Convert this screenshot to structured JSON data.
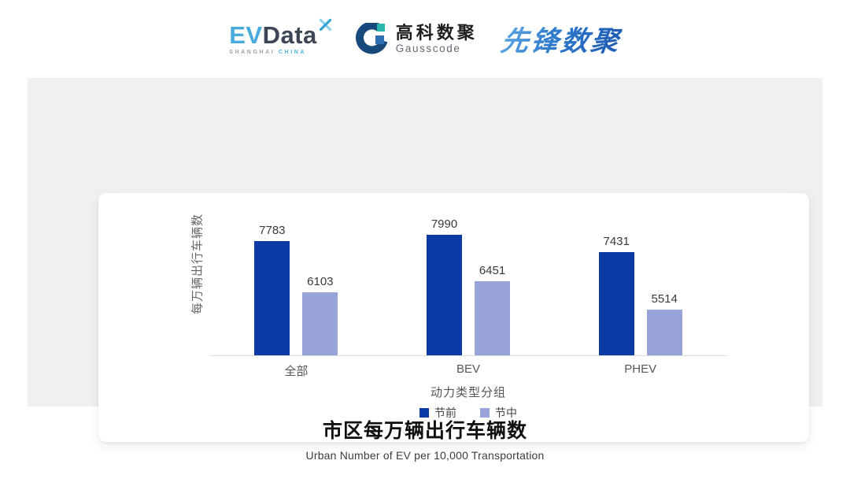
{
  "header": {
    "evdata": {
      "ev": "EV",
      "data": "Data",
      "sub_left": "SHANGHAI",
      "sub_right": "CHINA"
    },
    "gausscode": {
      "cn": "高科数聚",
      "en": "Gausscode"
    },
    "pioneer": {
      "text": "先锋数聚"
    }
  },
  "chart_data": {
    "type": "bar",
    "title": "市区每万辆出行车辆数",
    "subtitle": "Urban Number of EV per 10,000 Transportation",
    "xlabel": "动力类型分组",
    "ylabel": "每万辆出行车辆数",
    "categories": [
      "全部",
      "BEV",
      "PHEV"
    ],
    "series": [
      {
        "name": "节前",
        "color": "#0c3aa5",
        "values": [
          7783,
          7990,
          7431
        ]
      },
      {
        "name": "节中",
        "color": "#98a3d9",
        "values": [
          6103,
          6451,
          5514
        ]
      }
    ],
    "ylim": [
      4000,
      8500
    ],
    "value_labels": true,
    "legend_position": "bottom",
    "grid": false
  },
  "colors": {
    "stage_bg": "#f0f0f1",
    "axis_line": "#dcdcdc",
    "evdata_blue": "#49abdc",
    "evdata_dark": "#3d4656",
    "gauss_navy": "#17497b",
    "gauss_teal": "#2ab5ad",
    "gauss_blue": "#2f6eb4",
    "pioneer_blue": "#2e79cc"
  }
}
